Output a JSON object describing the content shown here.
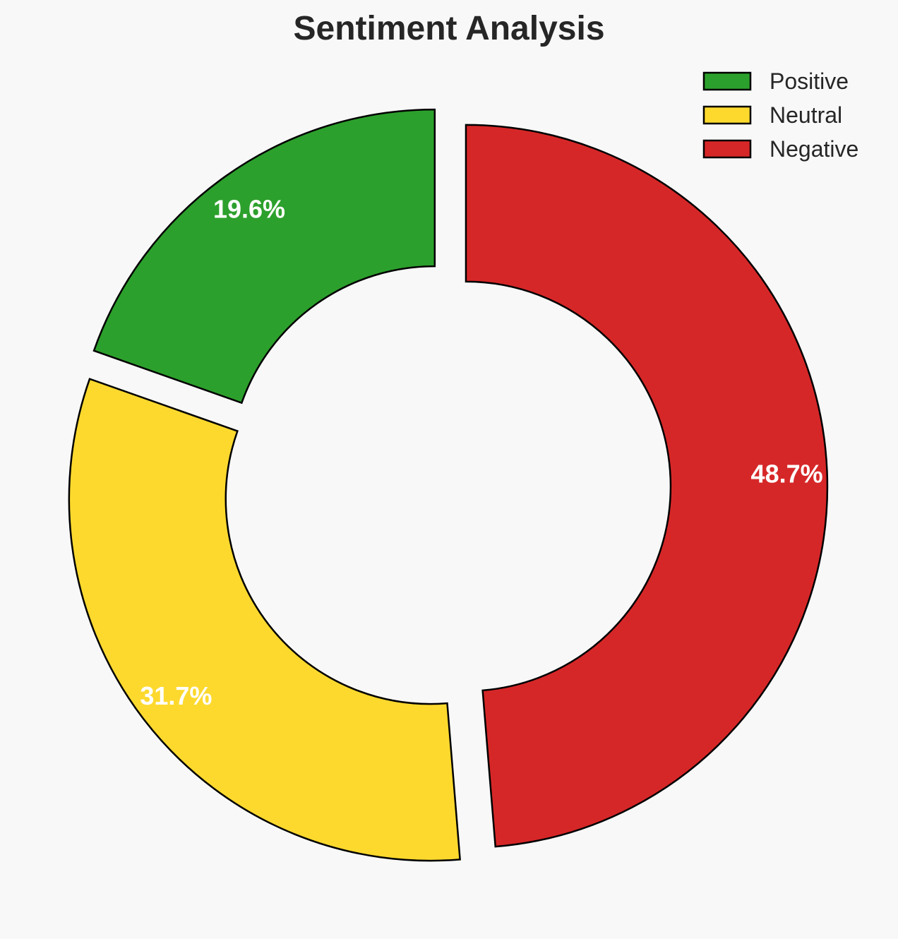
{
  "chart_data": {
    "type": "pie",
    "title": "Sentiment Analysis",
    "donut": true,
    "start_angle_deg": 90,
    "counterclockwise": true,
    "exploded": true,
    "categories": [
      "Positive",
      "Neutral",
      "Negative"
    ],
    "values": [
      19.6,
      31.7,
      48.7
    ],
    "labels": [
      "19.6%",
      "31.7%",
      "48.7%"
    ],
    "colors": [
      "#2ca02c",
      "#fdd92e",
      "#d62728"
    ],
    "edge_color": "#000000",
    "legend": {
      "position": "top-right",
      "entries": [
        "Positive",
        "Neutral",
        "Negative"
      ]
    }
  }
}
